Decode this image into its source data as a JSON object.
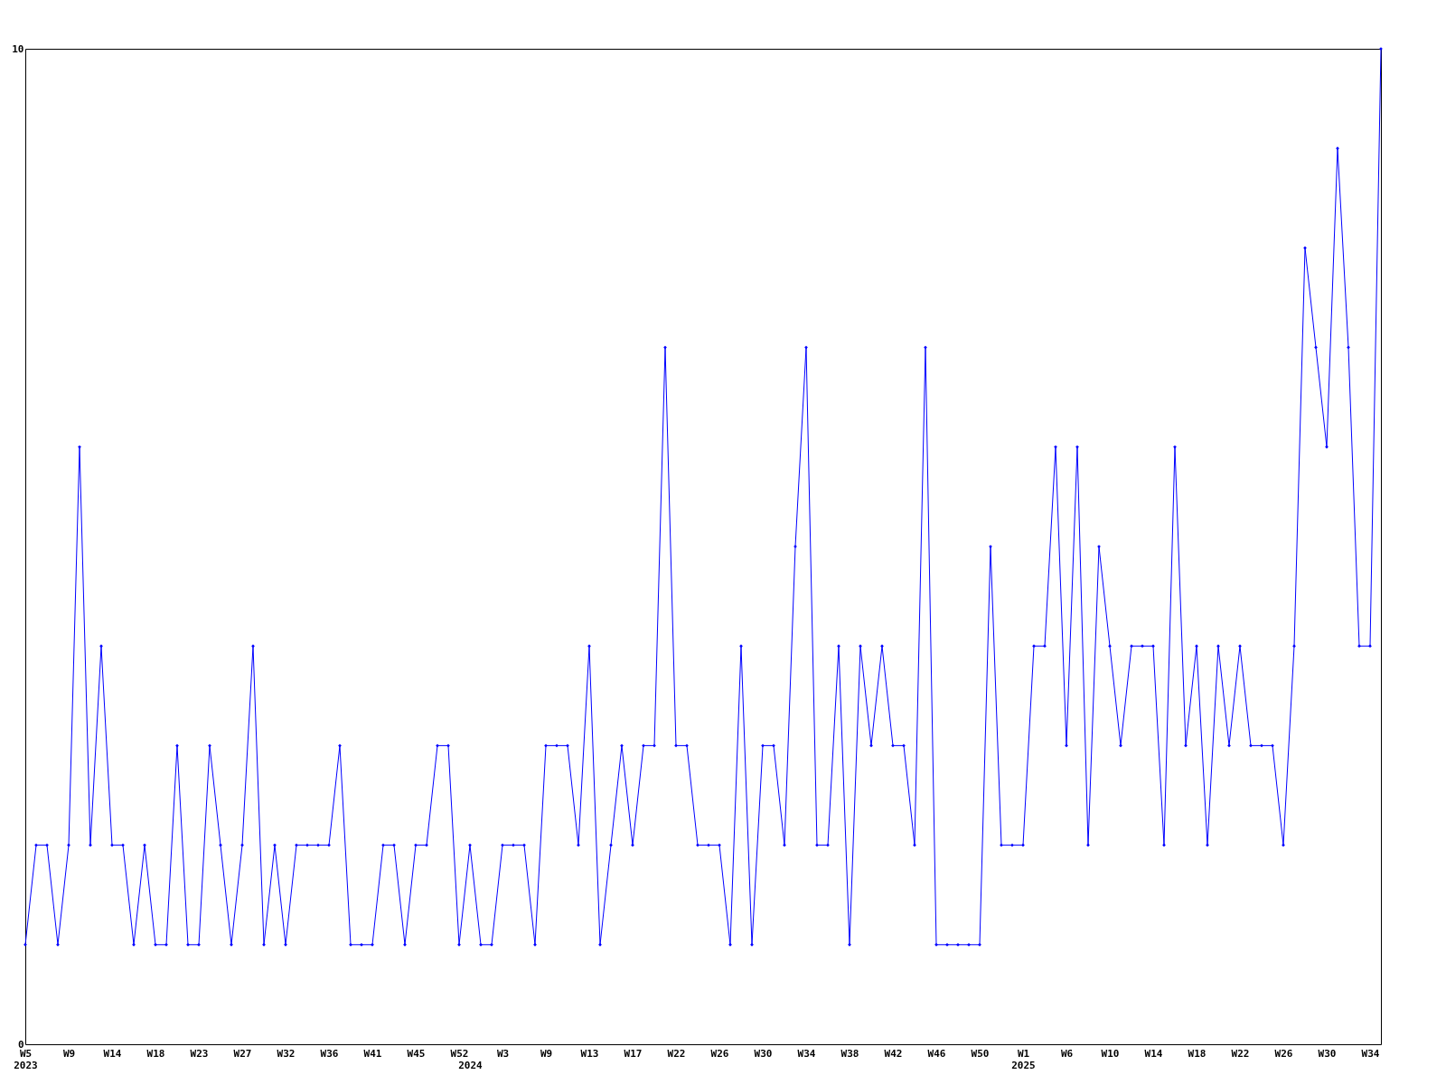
{
  "chart_data": {
    "type": "line",
    "categories": [
      "W5\n2023",
      null,
      null,
      null,
      "W9",
      null,
      null,
      null,
      "W14",
      null,
      null,
      null,
      "W18",
      null,
      null,
      null,
      "W23",
      null,
      null,
      null,
      "W27",
      null,
      null,
      null,
      "W32",
      null,
      null,
      null,
      "W36",
      null,
      null,
      null,
      "W41",
      null,
      null,
      null,
      "W45",
      null,
      null,
      null,
      "W52",
      "\n2024",
      null,
      null,
      "W3",
      null,
      null,
      null,
      "W9",
      null,
      null,
      null,
      "W13",
      null,
      null,
      null,
      "W17",
      null,
      null,
      null,
      "W22",
      null,
      null,
      null,
      "W26",
      null,
      null,
      null,
      "W30",
      null,
      null,
      null,
      "W34",
      null,
      null,
      null,
      "W38",
      null,
      null,
      null,
      "W42",
      null,
      null,
      null,
      "W46",
      null,
      null,
      null,
      "W50",
      null,
      null,
      null,
      "W1\n2025",
      null,
      null,
      null,
      "W6",
      null,
      null,
      null,
      "W10",
      null,
      null,
      null,
      "W14",
      null,
      null,
      null,
      "W18",
      null,
      null,
      null,
      "W22",
      null,
      null,
      null,
      "W26",
      null,
      null,
      null,
      "W30",
      null,
      null,
      null,
      "W34",
      null
    ],
    "series": [
      {
        "color": "#0000ff",
        "values": [
          1,
          2,
          2,
          1,
          2,
          6,
          2,
          4,
          2,
          2,
          1,
          2,
          1,
          1,
          3,
          1,
          1,
          3,
          2,
          1,
          2,
          4,
          1,
          2,
          1,
          2,
          2,
          2,
          2,
          3,
          1,
          1,
          1,
          2,
          2,
          1,
          2,
          2,
          3,
          3,
          1,
          2,
          1,
          1,
          2,
          2,
          2,
          1,
          3,
          3,
          3,
          2,
          4,
          1,
          2,
          3,
          2,
          3,
          3,
          7,
          3,
          3,
          2,
          2,
          2,
          1,
          4,
          1,
          3,
          3,
          2,
          5,
          7,
          2,
          2,
          4,
          1,
          4,
          3,
          4,
          3,
          3,
          2,
          7,
          1,
          1,
          1,
          1,
          1,
          5,
          2,
          2,
          2,
          4,
          4,
          6,
          3,
          6,
          2,
          5,
          4,
          3,
          4,
          4,
          4,
          2,
          6,
          3,
          4,
          2,
          4,
          3,
          4,
          3,
          3,
          3,
          2,
          4,
          8,
          7,
          6,
          9,
          7,
          4,
          4,
          10
        ]
      }
    ],
    "ylim": [
      0,
      10
    ],
    "yticks": [
      0,
      10
    ],
    "grid": false,
    "legend": false,
    "marker": "diamond",
    "line_style": "solid"
  }
}
